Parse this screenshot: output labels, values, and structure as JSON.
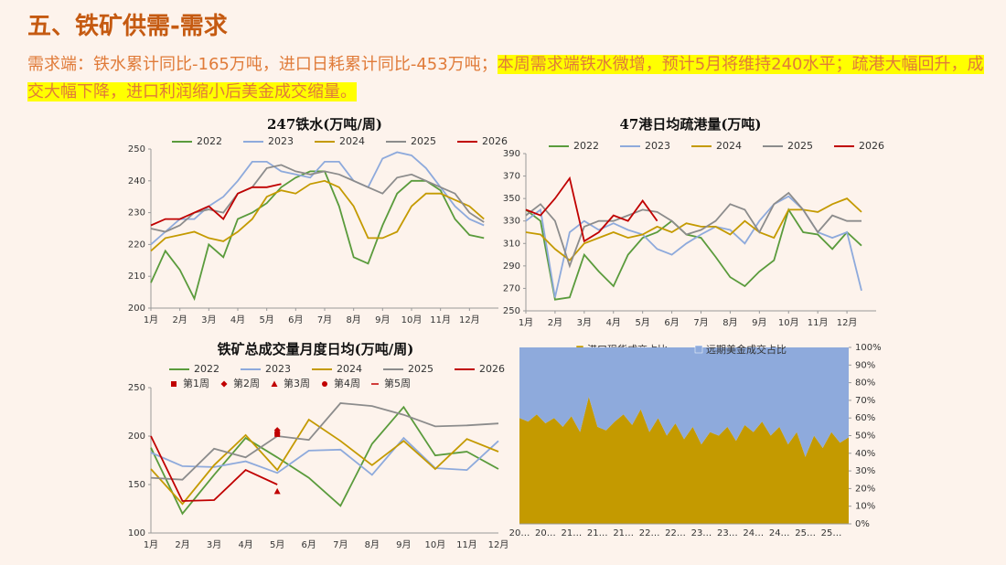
{
  "header": {
    "title": "五、铁矿供需-需求",
    "text_plain": "需求端：铁水累计同比-165万吨，进口日耗累计同比-453万吨；",
    "text_highlight": "本周需求端铁水微增，预计5月将维持240水平；疏港大幅回升，成交大幅下降，进口利润缩小后美金成交缩量。"
  },
  "chart_data": [
    {
      "type": "line",
      "title": "247铁水(万吨/周)",
      "x": [
        1,
        1.5,
        2,
        2.5,
        3,
        3.5,
        4,
        4.5,
        5,
        5.5,
        6,
        6.5,
        7,
        7.5,
        8,
        8.5,
        9,
        9.5,
        10,
        10.5,
        11,
        11.5,
        12,
        12.5
      ],
      "xlim": [
        1,
        13
      ],
      "xticks": [
        {
          "value": 1,
          "label": "1月"
        },
        {
          "value": 2,
          "label": "2月"
        },
        {
          "value": 3,
          "label": "3月"
        },
        {
          "value": 4,
          "label": "4月"
        },
        {
          "value": 5,
          "label": "5月"
        },
        {
          "value": 6,
          "label": "6月"
        },
        {
          "value": 7,
          "label": "7月"
        },
        {
          "value": 8,
          "label": "8月"
        },
        {
          "value": 9,
          "label": "9月"
        },
        {
          "value": 10,
          "label": "10月"
        },
        {
          "value": 11,
          "label": "11月"
        },
        {
          "value": 12,
          "label": "12月"
        }
      ],
      "ylim": [
        200,
        250
      ],
      "yticks": [
        200,
        210,
        220,
        230,
        240,
        250
      ],
      "series": [
        {
          "name": "2022",
          "color": "#5a9b3c",
          "values": [
            208,
            218,
            212,
            203,
            220,
            216,
            228,
            230,
            233,
            238,
            241,
            243,
            243,
            232,
            216,
            214,
            226,
            236,
            240,
            240,
            237,
            228,
            223,
            222
          ]
        },
        {
          "name": "2023",
          "color": "#8eaadc",
          "values": [
            220,
            224,
            228,
            228,
            232,
            235,
            240,
            246,
            246,
            243,
            242,
            241,
            246,
            246,
            240,
            238,
            247,
            249,
            248,
            244,
            238,
            232,
            228,
            226
          ]
        },
        {
          "name": "2024",
          "color": "#c49a00",
          "values": [
            218,
            222,
            223,
            224,
            222,
            221,
            224,
            228,
            235,
            237,
            236,
            239,
            240,
            238,
            232,
            222,
            222,
            224,
            232,
            236,
            236,
            234,
            232,
            228
          ]
        },
        {
          "name": "2025",
          "color": "#8c8c8c",
          "values": [
            225,
            224,
            226,
            230,
            231,
            230,
            236,
            238,
            244,
            245,
            243,
            242,
            243,
            242,
            240,
            238,
            236,
            241,
            242,
            240,
            238,
            236,
            230,
            227
          ]
        },
        {
          "name": "2026",
          "color": "#c00000",
          "values": [
            226,
            228,
            228,
            230,
            232,
            228,
            236,
            238,
            238,
            239,
            null,
            null,
            null,
            null,
            null,
            null,
            null,
            null,
            null,
            null,
            null,
            null,
            null,
            null
          ]
        }
      ]
    },
    {
      "type": "line",
      "title": "47港日均疏港量(万吨)",
      "x": [
        1,
        1.5,
        2,
        2.5,
        3,
        3.5,
        4,
        4.5,
        5,
        5.5,
        6,
        6.5,
        7,
        7.5,
        8,
        8.5,
        9,
        9.5,
        10,
        10.5,
        11,
        11.5,
        12,
        12.5
      ],
      "xlim": [
        1,
        13
      ],
      "xticks": [
        {
          "value": 1,
          "label": "1月"
        },
        {
          "value": 2,
          "label": "2月"
        },
        {
          "value": 3,
          "label": "3月"
        },
        {
          "value": 4,
          "label": "4月"
        },
        {
          "value": 5,
          "label": "5月"
        },
        {
          "value": 6,
          "label": "6月"
        },
        {
          "value": 7,
          "label": "7月"
        },
        {
          "value": 8,
          "label": "8月"
        },
        {
          "value": 9,
          "label": "9月"
        },
        {
          "value": 10,
          "label": "10月"
        },
        {
          "value": 11,
          "label": "11月"
        },
        {
          "value": 12,
          "label": "12月"
        }
      ],
      "ylim": [
        250,
        390
      ],
      "yticks": [
        250,
        270,
        290,
        310,
        330,
        350,
        370,
        390
      ],
      "series": [
        {
          "name": "2022",
          "color": "#5a9b3c",
          "values": [
            340,
            330,
            260,
            262,
            300,
            285,
            272,
            300,
            315,
            320,
            330,
            318,
            315,
            298,
            280,
            272,
            285,
            295,
            340,
            320,
            318,
            305,
            320,
            308
          ]
        },
        {
          "name": "2023",
          "color": "#8eaadc",
          "values": [
            330,
            340,
            262,
            320,
            330,
            322,
            328,
            322,
            318,
            305,
            300,
            310,
            318,
            325,
            322,
            310,
            330,
            345,
            352,
            340,
            320,
            315,
            320,
            268
          ]
        },
        {
          "name": "2024",
          "color": "#c49a00",
          "values": [
            320,
            318,
            305,
            295,
            310,
            315,
            320,
            315,
            318,
            325,
            320,
            328,
            325,
            325,
            318,
            330,
            320,
            315,
            340,
            340,
            338,
            345,
            350,
            338
          ]
        },
        {
          "name": "2025",
          "color": "#8c8c8c",
          "values": [
            335,
            345,
            330,
            290,
            325,
            330,
            330,
            335,
            340,
            338,
            330,
            318,
            322,
            330,
            345,
            340,
            320,
            345,
            355,
            340,
            320,
            335,
            330,
            330
          ]
        },
        {
          "name": "2026",
          "color": "#c00000",
          "values": [
            340,
            335,
            350,
            368,
            312,
            320,
            335,
            330,
            348,
            330,
            null,
            null,
            null,
            null,
            null,
            null,
            null,
            null,
            null,
            null,
            null,
            null,
            null,
            null
          ]
        }
      ]
    },
    {
      "type": "line",
      "title": "铁矿总成交量月度日均(万吨/周)",
      "categories": [
        "1月",
        "2月",
        "3月",
        "4月",
        "5月",
        "6月",
        "7月",
        "8月",
        "9月",
        "10月",
        "11月",
        "12月"
      ],
      "ylim": [
        100,
        250
      ],
      "yticks": [
        100,
        150,
        200,
        250
      ],
      "series": [
        {
          "name": "2022",
          "color": "#5a9b3c",
          "values": [
            188,
            120,
            160,
            198,
            178,
            157,
            128,
            192,
            230,
            180,
            184,
            166
          ]
        },
        {
          "name": "2023",
          "color": "#8eaadc",
          "values": [
            183,
            169,
            168,
            174,
            162,
            185,
            186,
            160,
            198,
            167,
            165,
            195
          ]
        },
        {
          "name": "2024",
          "color": "#c49a00",
          "values": [
            166,
            130,
            170,
            201,
            165,
            217,
            195,
            170,
            195,
            166,
            197,
            184
          ]
        },
        {
          "name": "2025",
          "color": "#8c8c8c",
          "values": [
            157,
            155,
            187,
            178,
            200,
            196,
            234,
            231,
            222,
            210,
            211,
            213
          ]
        },
        {
          "name": "2026",
          "color": "#c00000",
          "values": [
            200,
            133,
            134,
            165,
            150,
            null,
            null,
            null,
            null,
            null,
            null,
            null
          ]
        },
        {
          "name": "第1周",
          "color": "#c00000",
          "marker": "square",
          "values": [
            null,
            null,
            null,
            null,
            202,
            null,
            null,
            null,
            null,
            null,
            null,
            null
          ]
        },
        {
          "name": "第2周",
          "color": "#c00000",
          "marker": "diamond",
          "values": [
            null,
            null,
            null,
            null,
            206,
            null,
            null,
            null,
            null,
            null,
            null,
            null
          ]
        },
        {
          "name": "第3周",
          "color": "#c00000",
          "marker": "triangle",
          "values": [
            null,
            null,
            null,
            null,
            143,
            null,
            null,
            null,
            null,
            null,
            null,
            null
          ]
        },
        {
          "name": "第4周",
          "color": "#c00000",
          "marker": "circle",
          "values": [
            null,
            null,
            null,
            null,
            203,
            null,
            null,
            null,
            null,
            null,
            null,
            null
          ]
        },
        {
          "name": "第5周",
          "color": "#c00000",
          "marker": "dash",
          "values": [
            null,
            null,
            null,
            null,
            null,
            null,
            null,
            null,
            null,
            null,
            null,
            null
          ]
        }
      ]
    },
    {
      "type": "area",
      "stacked": true,
      "categories": [
        "20…",
        null,
        null,
        "20…",
        null,
        null,
        "21…",
        null,
        null,
        "21…",
        null,
        null,
        "21…",
        null,
        null,
        "22…",
        null,
        null,
        "22…",
        null,
        null,
        "23…",
        null,
        null,
        "23…",
        null,
        null,
        "24…",
        null,
        null,
        "24…",
        null,
        null,
        "25…",
        null,
        null,
        "25…",
        null,
        null
      ],
      "ylim": [
        0,
        100
      ],
      "yticks": [
        {
          "value": 0,
          "label": "0%"
        },
        {
          "value": 10,
          "label": "10%"
        },
        {
          "value": 20,
          "label": "20%"
        },
        {
          "value": 30,
          "label": "30%"
        },
        {
          "value": 40,
          "label": "40%"
        },
        {
          "value": 50,
          "label": "50%"
        },
        {
          "value": 60,
          "label": "60%"
        },
        {
          "value": 70,
          "label": "70%"
        },
        {
          "value": 80,
          "label": "80%"
        },
        {
          "value": 90,
          "label": "90%"
        },
        {
          "value": 100,
          "label": "100%"
        }
      ],
      "series": [
        {
          "name": "港口现货成交占比",
          "color": "#c49a00",
          "values": [
            60,
            58,
            62,
            57,
            60,
            55,
            61,
            52,
            72,
            55,
            53,
            58,
            62,
            56,
            65,
            52,
            60,
            50,
            57,
            48,
            55,
            45,
            52,
            50,
            55,
            47,
            56,
            52,
            58,
            50,
            55,
            45,
            52,
            38,
            50,
            43,
            52,
            46,
            49
          ]
        },
        {
          "name": "远期美金成交占比",
          "color": "#8eaadc",
          "values": [
            40,
            42,
            38,
            43,
            40,
            45,
            39,
            48,
            28,
            45,
            47,
            42,
            38,
            44,
            35,
            48,
            40,
            50,
            43,
            52,
            45,
            55,
            48,
            50,
            45,
            53,
            44,
            48,
            42,
            50,
            45,
            55,
            48,
            62,
            50,
            57,
            48,
            54,
            51
          ]
        }
      ]
    }
  ]
}
